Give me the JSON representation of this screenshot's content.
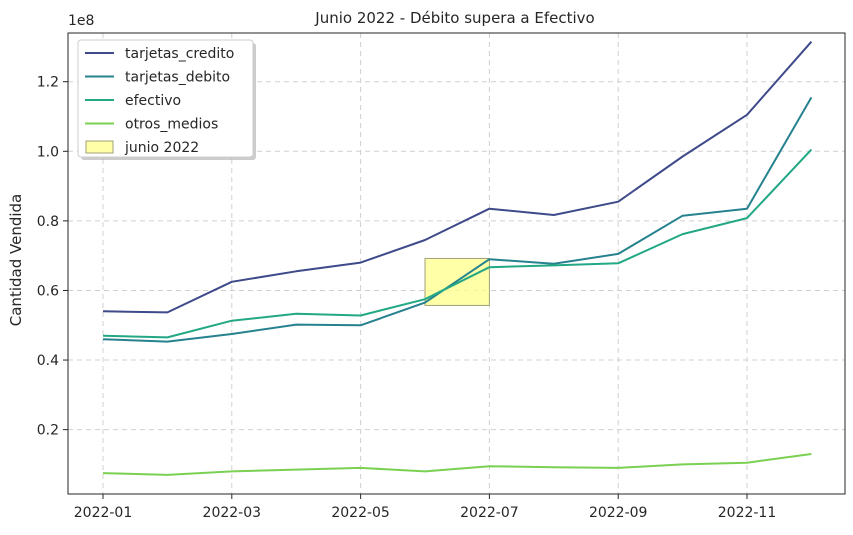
{
  "chart_data": {
    "type": "line",
    "title": "Junio 2022 - Débito supera a Efectivo",
    "xlabel": "",
    "ylabel": "Cantidad Vendida",
    "y_offset_label": "1e8",
    "y_multiplier": 100000000,
    "x": [
      "2022-01",
      "2022-02",
      "2022-03",
      "2022-04",
      "2022-05",
      "2022-06",
      "2022-07",
      "2022-08",
      "2022-09",
      "2022-10",
      "2022-11",
      "2022-12"
    ],
    "x_tick_labels": [
      "2022-01",
      "2022-03",
      "2022-05",
      "2022-07",
      "2022-09",
      "2022-11"
    ],
    "y_tick_labels": [
      "0.2",
      "0.4",
      "0.6",
      "0.8",
      "1.0",
      "1.2"
    ],
    "ylim": [
      0.015,
      1.34
    ],
    "grid": true,
    "legend_position": "upper-left",
    "series": [
      {
        "name": "tarjetas_credito",
        "color": "#3e4a89",
        "values": [
          0.54,
          0.537,
          0.625,
          0.655,
          0.68,
          0.745,
          0.835,
          0.817,
          0.855,
          0.985,
          1.105,
          1.315
        ]
      },
      {
        "name": "tarjetas_debito",
        "color": "#26828e",
        "values": [
          0.46,
          0.453,
          0.475,
          0.502,
          0.5,
          0.565,
          0.69,
          0.677,
          0.705,
          0.815,
          0.835,
          1.155
        ]
      },
      {
        "name": "efectivo",
        "color": "#22a884",
        "values": [
          0.47,
          0.465,
          0.513,
          0.533,
          0.528,
          0.575,
          0.667,
          0.672,
          0.678,
          0.762,
          0.808,
          1.005
        ]
      },
      {
        "name": "otros_medios",
        "color": "#7ad151",
        "values": [
          0.075,
          0.07,
          0.08,
          0.085,
          0.09,
          0.08,
          0.095,
          0.092,
          0.09,
          0.1,
          0.105,
          0.13
        ]
      }
    ],
    "highlight": {
      "label": "junio 2022",
      "x_start": "2022-06",
      "x_end": "2022-07",
      "y_range": [
        0.557,
        0.692
      ],
      "fill": "#ffff8a",
      "stroke": "#a0a07a"
    }
  }
}
